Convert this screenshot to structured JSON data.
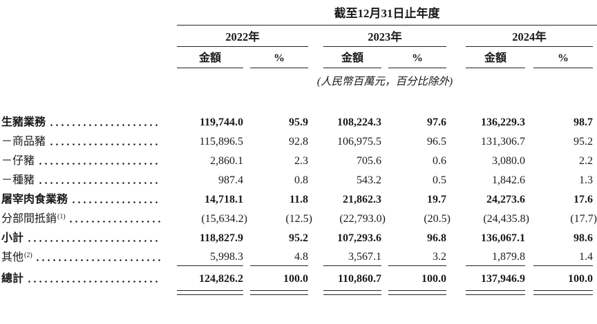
{
  "table": {
    "title": "截至12月31日止年度",
    "unit_note": "(人民幣百萬元，百分比除外)",
    "year_groups": [
      "2022年",
      "2023年",
      "2024年"
    ],
    "sub_headers": {
      "amount": "金額",
      "percent": "%"
    },
    "rows": [
      {
        "label": "生豬業務",
        "sup": "",
        "emphasis": true,
        "values": [
          "119,744.0",
          "95.9",
          "108,224.3",
          "97.6",
          "136,229.3",
          "98.7"
        ]
      },
      {
        "label": "－商品豬",
        "sup": "",
        "emphasis": false,
        "values": [
          "115,896.5",
          "92.8",
          "106,975.5",
          "96.5",
          "131,306.7",
          "95.2"
        ]
      },
      {
        "label": "－仔豬",
        "sup": "",
        "emphasis": false,
        "values": [
          "2,860.1",
          "2.3",
          "705.6",
          "0.6",
          "3,080.0",
          "2.2"
        ]
      },
      {
        "label": "－種豬",
        "sup": "",
        "emphasis": false,
        "values": [
          "987.4",
          "0.8",
          "543.2",
          "0.5",
          "1,842.6",
          "1.3"
        ]
      },
      {
        "label": "屠宰肉食業務",
        "sup": "",
        "emphasis": true,
        "values": [
          "14,718.1",
          "11.8",
          "21,862.3",
          "19.7",
          "24,273.6",
          "17.6"
        ]
      },
      {
        "label": "分部間抵銷",
        "sup": "(1)",
        "emphasis": false,
        "values": [
          "(15,634.2)",
          "(12.5)",
          "(22,793.0)",
          "(20.5)",
          "(24,435.8)",
          "(17.7)"
        ]
      },
      {
        "label": "小計",
        "sup": "",
        "emphasis": true,
        "values": [
          "118,827.9",
          "95.2",
          "107,293.6",
          "96.8",
          "136,067.1",
          "98.6"
        ]
      },
      {
        "label": "其他",
        "sup": "(2)",
        "emphasis": false,
        "values": [
          "5,998.3",
          "4.8",
          "3,567.1",
          "3.2",
          "1,879.8",
          "1.4"
        ]
      },
      {
        "label": "總計",
        "sup": "",
        "emphasis": true,
        "values": [
          "124,826.2",
          "100.0",
          "110,860.7",
          "100.0",
          "137,946.9",
          "100.0"
        ]
      }
    ]
  }
}
